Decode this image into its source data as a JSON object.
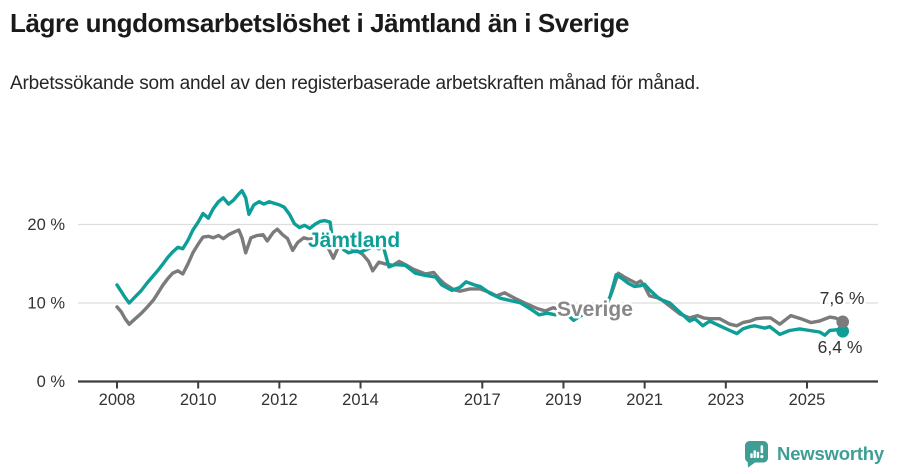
{
  "title": "Lägre ungdomsarbetslöshet i Jämtland än i Sverige",
  "subtitle": "Arbetssökande som andel av den registerbaserade arbetskraften månad för månad.",
  "footer": {
    "brand": "Newsworthy"
  },
  "colors": {
    "jamtland": "#0d9f97",
    "sverige": "#7b7b7b",
    "axis": "#3d3d3d",
    "grid": "#dedede",
    "tick_text": "#333333",
    "end_label_text": "#333333",
    "halo": "#ffffff",
    "brand_teal": "#3f9e94",
    "sverige_label": "#878787"
  },
  "chart_data": {
    "type": "line",
    "unit": "%",
    "title": "Lägre ungdomsarbetslöshet i Jämtland än i Sverige",
    "xlabel": "",
    "ylabel": "",
    "x_axis": {
      "ticks": [
        2008,
        2010,
        2012,
        2014,
        2017,
        2019,
        2021,
        2023,
        2025
      ],
      "range": [
        2008,
        2025.9
      ]
    },
    "y_axis": {
      "tick_labels": [
        "0 %",
        "10 %",
        "20 %"
      ],
      "tick_values": [
        0,
        10,
        20
      ],
      "range": [
        0,
        25.5
      ],
      "gridlines": [
        10,
        20
      ]
    },
    "grid": "horizontal-only",
    "legend": "inline-labels",
    "series": [
      {
        "name": "Jämtland",
        "color": "#0d9f97",
        "end_label": "6,4 %",
        "end_value": 6.4,
        "points": [
          [
            2008.0,
            12.3
          ],
          [
            2008.1,
            11.5
          ],
          [
            2008.2,
            10.7
          ],
          [
            2008.3,
            10.0
          ],
          [
            2008.45,
            10.8
          ],
          [
            2008.6,
            11.6
          ],
          [
            2008.75,
            12.6
          ],
          [
            2008.9,
            13.5
          ],
          [
            2009.0,
            14.1
          ],
          [
            2009.12,
            14.9
          ],
          [
            2009.25,
            15.8
          ],
          [
            2009.37,
            16.5
          ],
          [
            2009.5,
            17.1
          ],
          [
            2009.62,
            16.9
          ],
          [
            2009.75,
            18.0
          ],
          [
            2009.87,
            19.3
          ],
          [
            2010.0,
            20.3
          ],
          [
            2010.12,
            21.4
          ],
          [
            2010.25,
            20.8
          ],
          [
            2010.37,
            22.0
          ],
          [
            2010.5,
            22.9
          ],
          [
            2010.62,
            23.4
          ],
          [
            2010.75,
            22.6
          ],
          [
            2010.87,
            23.1
          ],
          [
            2011.0,
            23.9
          ],
          [
            2011.08,
            24.3
          ],
          [
            2011.17,
            23.4
          ],
          [
            2011.25,
            21.3
          ],
          [
            2011.37,
            22.5
          ],
          [
            2011.5,
            22.9
          ],
          [
            2011.62,
            22.6
          ],
          [
            2011.75,
            22.9
          ],
          [
            2011.87,
            22.7
          ],
          [
            2012.0,
            22.5
          ],
          [
            2012.12,
            22.2
          ],
          [
            2012.25,
            21.3
          ],
          [
            2012.37,
            20.1
          ],
          [
            2012.5,
            19.6
          ],
          [
            2012.62,
            19.9
          ],
          [
            2012.75,
            19.5
          ],
          [
            2012.87,
            20.0
          ],
          [
            2013.0,
            20.4
          ],
          [
            2013.12,
            20.5
          ],
          [
            2013.25,
            20.3
          ],
          [
            2013.33,
            17.2
          ],
          [
            2013.45,
            18.2
          ],
          [
            2013.58,
            16.8
          ],
          [
            2013.7,
            16.4
          ],
          [
            2013.85,
            16.6
          ],
          [
            2014.0,
            16.5
          ],
          [
            2014.15,
            16.8
          ],
          [
            2014.3,
            17.2
          ],
          [
            2014.45,
            16.9
          ],
          [
            2014.55,
            17.4
          ],
          [
            2014.7,
            14.6
          ],
          [
            2014.85,
            14.9
          ],
          [
            2015.1,
            14.8
          ],
          [
            2015.35,
            13.8
          ],
          [
            2015.6,
            13.5
          ],
          [
            2015.85,
            13.3
          ],
          [
            2016.0,
            12.3
          ],
          [
            2016.25,
            11.6
          ],
          [
            2016.45,
            12.0
          ],
          [
            2016.6,
            12.7
          ],
          [
            2016.8,
            12.3
          ],
          [
            2016.95,
            12.1
          ],
          [
            2017.2,
            11.2
          ],
          [
            2017.45,
            10.6
          ],
          [
            2017.7,
            10.3
          ],
          [
            2017.95,
            10.0
          ],
          [
            2018.2,
            9.2
          ],
          [
            2018.4,
            8.5
          ],
          [
            2018.6,
            8.7
          ],
          [
            2018.8,
            8.5
          ],
          [
            2019.0,
            8.9
          ],
          [
            2019.12,
            8.4
          ],
          [
            2019.25,
            7.8
          ],
          [
            2019.4,
            8.3
          ],
          [
            2019.6,
            8.8
          ],
          [
            2019.8,
            9.1
          ],
          [
            2020.0,
            9.4
          ],
          [
            2020.15,
            10.8
          ],
          [
            2020.3,
            13.6
          ],
          [
            2020.45,
            13.1
          ],
          [
            2020.6,
            12.5
          ],
          [
            2020.75,
            12.1
          ],
          [
            2020.9,
            12.2
          ],
          [
            2021.0,
            12.4
          ],
          [
            2021.12,
            11.7
          ],
          [
            2021.37,
            10.5
          ],
          [
            2021.62,
            10.0
          ],
          [
            2021.87,
            8.8
          ],
          [
            2022.11,
            7.7
          ],
          [
            2022.24,
            8.0
          ],
          [
            2022.43,
            7.1
          ],
          [
            2022.6,
            7.7
          ],
          [
            2022.85,
            7.1
          ],
          [
            2023.1,
            6.5
          ],
          [
            2023.27,
            6.1
          ],
          [
            2023.42,
            6.7
          ],
          [
            2023.59,
            7.0
          ],
          [
            2023.71,
            7.1
          ],
          [
            2023.96,
            6.8
          ],
          [
            2024.08,
            7.0
          ],
          [
            2024.33,
            6.0
          ],
          [
            2024.57,
            6.5
          ],
          [
            2024.82,
            6.7
          ],
          [
            2025.07,
            6.5
          ],
          [
            2025.31,
            6.3
          ],
          [
            2025.44,
            5.9
          ],
          [
            2025.56,
            6.5
          ],
          [
            2025.75,
            6.6
          ],
          [
            2025.88,
            6.4
          ]
        ]
      },
      {
        "name": "Sverige",
        "color": "#7b7b7b",
        "end_label": "7,6 %",
        "end_value": 7.6,
        "points": [
          [
            2008.0,
            9.5
          ],
          [
            2008.1,
            8.9
          ],
          [
            2008.2,
            8.0
          ],
          [
            2008.3,
            7.3
          ],
          [
            2008.45,
            8.0
          ],
          [
            2008.6,
            8.7
          ],
          [
            2008.75,
            9.5
          ],
          [
            2008.9,
            10.4
          ],
          [
            2009.0,
            11.2
          ],
          [
            2009.12,
            12.2
          ],
          [
            2009.25,
            13.1
          ],
          [
            2009.37,
            13.8
          ],
          [
            2009.5,
            14.1
          ],
          [
            2009.62,
            13.7
          ],
          [
            2009.75,
            15.0
          ],
          [
            2009.87,
            16.4
          ],
          [
            2010.0,
            17.5
          ],
          [
            2010.12,
            18.4
          ],
          [
            2010.25,
            18.5
          ],
          [
            2010.37,
            18.3
          ],
          [
            2010.5,
            18.6
          ],
          [
            2010.62,
            18.2
          ],
          [
            2010.75,
            18.7
          ],
          [
            2010.87,
            19.0
          ],
          [
            2011.0,
            19.3
          ],
          [
            2011.08,
            18.3
          ],
          [
            2011.17,
            16.4
          ],
          [
            2011.3,
            18.3
          ],
          [
            2011.45,
            18.6
          ],
          [
            2011.6,
            18.7
          ],
          [
            2011.7,
            17.9
          ],
          [
            2011.85,
            19.0
          ],
          [
            2011.95,
            19.4
          ],
          [
            2012.08,
            18.7
          ],
          [
            2012.2,
            18.2
          ],
          [
            2012.33,
            16.7
          ],
          [
            2012.45,
            17.7
          ],
          [
            2012.6,
            18.3
          ],
          [
            2012.75,
            18.1
          ],
          [
            2012.9,
            18.5
          ],
          [
            2013.0,
            18.4
          ],
          [
            2013.15,
            17.6
          ],
          [
            2013.33,
            15.7
          ],
          [
            2013.45,
            17.1
          ],
          [
            2013.6,
            17.3
          ],
          [
            2013.75,
            17.1
          ],
          [
            2013.9,
            16.7
          ],
          [
            2014.05,
            16.2
          ],
          [
            2014.2,
            15.3
          ],
          [
            2014.3,
            14.1
          ],
          [
            2014.45,
            15.2
          ],
          [
            2014.6,
            15.0
          ],
          [
            2014.8,
            14.8
          ],
          [
            2014.95,
            15.3
          ],
          [
            2015.1,
            14.9
          ],
          [
            2015.3,
            14.3
          ],
          [
            2015.45,
            14.0
          ],
          [
            2015.6,
            13.7
          ],
          [
            2015.8,
            13.9
          ],
          [
            2015.95,
            13.0
          ],
          [
            2016.08,
            12.4
          ],
          [
            2016.3,
            11.7
          ],
          [
            2016.45,
            11.5
          ],
          [
            2016.7,
            11.8
          ],
          [
            2016.95,
            11.8
          ],
          [
            2017.2,
            11.3
          ],
          [
            2017.35,
            10.9
          ],
          [
            2017.55,
            11.3
          ],
          [
            2017.8,
            10.6
          ],
          [
            2018.05,
            10.0
          ],
          [
            2018.35,
            9.3
          ],
          [
            2018.55,
            9.0
          ],
          [
            2018.75,
            9.4
          ],
          [
            2018.95,
            9.0
          ],
          [
            2019.1,
            8.9
          ],
          [
            2019.3,
            9.0
          ],
          [
            2019.5,
            8.9
          ],
          [
            2019.7,
            9.1
          ],
          [
            2019.9,
            9.2
          ],
          [
            2020.05,
            9.5
          ],
          [
            2020.2,
            11.5
          ],
          [
            2020.35,
            13.8
          ],
          [
            2020.5,
            13.3
          ],
          [
            2020.65,
            12.9
          ],
          [
            2020.8,
            12.5
          ],
          [
            2020.9,
            12.8
          ],
          [
            2021.0,
            12.1
          ],
          [
            2021.12,
            10.9
          ],
          [
            2021.37,
            10.6
          ],
          [
            2021.62,
            9.6
          ],
          [
            2021.87,
            8.6
          ],
          [
            2022.11,
            8.1
          ],
          [
            2022.3,
            8.4
          ],
          [
            2022.45,
            8.1
          ],
          [
            2022.6,
            8.0
          ],
          [
            2022.85,
            8.0
          ],
          [
            2023.1,
            7.3
          ],
          [
            2023.27,
            7.1
          ],
          [
            2023.42,
            7.5
          ],
          [
            2023.6,
            7.7
          ],
          [
            2023.75,
            8.0
          ],
          [
            2023.95,
            8.1
          ],
          [
            2024.1,
            8.1
          ],
          [
            2024.33,
            7.3
          ],
          [
            2024.6,
            8.4
          ],
          [
            2024.85,
            8.0
          ],
          [
            2025.1,
            7.5
          ],
          [
            2025.3,
            7.7
          ],
          [
            2025.56,
            8.2
          ],
          [
            2025.7,
            8.1
          ],
          [
            2025.88,
            7.6
          ]
        ]
      }
    ]
  }
}
